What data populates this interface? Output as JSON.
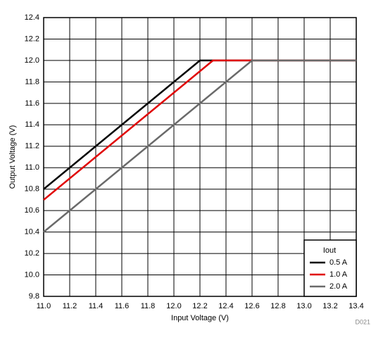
{
  "chart_data": {
    "type": "line",
    "x_label": "Input Voltage (V)",
    "y_label": "Output Voltage (V)",
    "annotation": "D021",
    "legend_title": "Iout",
    "legend": "lower right",
    "grid": true,
    "xlim": [
      11.0,
      13.4
    ],
    "xticks": [
      {
        "value": 11,
        "label": "11.0"
      },
      11.2,
      11.4,
      11.6,
      11.8,
      {
        "value": 12,
        "label": "12.0"
      },
      12.2,
      12.4,
      12.6,
      12.8,
      {
        "value": 13,
        "label": "13.0"
      },
      13.2,
      13.4
    ],
    "ylim": [
      9.8,
      12.4
    ],
    "yticks": [
      9.8,
      {
        "value": 10,
        "label": "10.0"
      },
      10.2,
      10.4,
      10.6,
      10.8,
      {
        "value": 11,
        "label": "11.0"
      },
      11.2,
      11.4,
      11.6,
      11.8,
      {
        "value": 12,
        "label": "12.0"
      },
      12.2,
      12.4
    ],
    "series": [
      {
        "name": "0.5 A",
        "color": "#000000",
        "x": [
          11.0,
          12.2,
          13.4
        ],
        "values": [
          10.8,
          12.0,
          12.0
        ]
      },
      {
        "name": "1.0 A",
        "color": "#e00000",
        "x": [
          11.0,
          12.3,
          13.4
        ],
        "values": [
          10.7,
          12.0,
          12.0
        ]
      },
      {
        "name": "2.0 A",
        "color": "#6a6a6a",
        "x": [
          11.0,
          12.6,
          13.4
        ],
        "values": [
          10.4,
          12.0,
          12.0
        ]
      }
    ]
  }
}
